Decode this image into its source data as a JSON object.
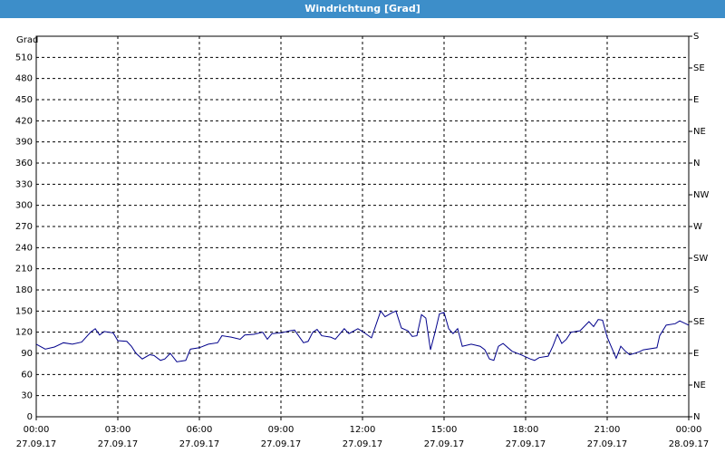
{
  "chart_data": {
    "type": "line",
    "title": "Windrichtung [Grad]",
    "y_label": "Grad",
    "x": [
      0,
      0.33,
      0.67,
      1,
      1.33,
      1.67,
      2,
      2.17,
      2.33,
      2.5,
      2.83,
      3,
      3.33,
      3.5,
      3.67,
      3.9,
      4.17,
      4.33,
      4.57,
      4.73,
      4.93,
      5.17,
      5.5,
      5.67,
      6,
      6.33,
      6.67,
      6.83,
      7.17,
      7.5,
      7.67,
      8,
      8.33,
      8.5,
      8.67,
      9,
      9.33,
      9.5,
      9.83,
      10,
      10.17,
      10.33,
      10.5,
      10.83,
      11,
      11.33,
      11.5,
      11.83,
      12,
      12.33,
      12.67,
      12.83,
      13.1,
      13.23,
      13.43,
      13.67,
      13.83,
      14,
      14.17,
      14.33,
      14.5,
      14.67,
      14.83,
      15,
      15.17,
      15.33,
      15.5,
      15.67,
      16,
      16.33,
      16.5,
      16.67,
      16.83,
      17,
      17.17,
      17.5,
      17.83,
      18.17,
      18.33,
      18.5,
      18.83,
      19,
      19.17,
      19.33,
      19.5,
      19.67,
      20,
      20.33,
      20.5,
      20.67,
      20.83,
      21,
      21.33,
      21.5,
      21.67,
      21.83,
      22.17,
      22.33,
      22.83,
      22.93,
      23.17,
      23.5,
      23.67,
      24
    ],
    "series": [
      {
        "name": "Windrichtung",
        "color": "#00008b",
        "values": [
          103,
          96,
          99,
          105,
          103,
          106,
          120,
          125,
          116,
          121,
          119,
          108,
          107,
          100,
          90,
          82,
          88,
          87,
          80,
          82,
          90,
          78,
          80,
          96,
          98,
          103,
          105,
          115,
          113,
          110,
          116,
          117,
          120,
          110,
          118,
          119,
          122,
          123,
          105,
          107,
          120,
          124,
          115,
          113,
          110,
          125,
          118,
          125,
          121,
          112,
          150,
          142,
          148,
          150,
          126,
          122,
          114,
          115,
          145,
          140,
          95,
          120,
          146,
          148,
          125,
          118,
          125,
          100,
          103,
          100,
          95,
          82,
          80,
          100,
          104,
          93,
          88,
          82,
          80,
          84,
          86,
          100,
          117,
          104,
          110,
          120,
          122,
          135,
          128,
          138,
          137,
          113,
          83,
          100,
          93,
          88,
          92,
          95,
          98,
          115,
          130,
          132,
          136,
          130
        ]
      }
    ],
    "xlim": [
      0,
      24
    ],
    "xticks": [
      {
        "value": 0,
        "label": "00:00"
      },
      {
        "value": 3,
        "label": "03:00"
      },
      {
        "value": 6,
        "label": "06:00"
      },
      {
        "value": 9,
        "label": "09:00"
      },
      {
        "value": 12,
        "label": "12:00"
      },
      {
        "value": 15,
        "label": "15:00"
      },
      {
        "value": 18,
        "label": "18:00"
      },
      {
        "value": 21,
        "label": "21:00"
      },
      {
        "value": 24,
        "label": "00:00"
      }
    ],
    "xtick_dates": [
      "27.09.17",
      "27.09.17",
      "27.09.17",
      "27.09.17",
      "27.09.17",
      "27.09.17",
      "27.09.17",
      "27.09.17",
      "28.09.17"
    ],
    "ylim": [
      0,
      540
    ],
    "yticks": [
      0,
      30,
      60,
      90,
      120,
      150,
      180,
      210,
      240,
      270,
      300,
      330,
      360,
      390,
      420,
      450,
      480,
      510
    ],
    "y2lim": [
      0,
      540
    ],
    "y2ticks": [
      {
        "value": 0,
        "label": "N"
      },
      {
        "value": 45,
        "label": "NE"
      },
      {
        "value": 90,
        "label": "E"
      },
      {
        "value": 135,
        "label": "SE"
      },
      {
        "value": 180,
        "label": "S"
      },
      {
        "value": 225,
        "label": "SW"
      },
      {
        "value": 270,
        "label": "W"
      },
      {
        "value": 315,
        "label": "NW"
      },
      {
        "value": 360,
        "label": "N"
      },
      {
        "value": 405,
        "label": "NE"
      },
      {
        "value": 450,
        "label": "E"
      },
      {
        "value": 495,
        "label": "SE"
      },
      {
        "value": 540,
        "label": "S"
      }
    ],
    "grid": true
  }
}
